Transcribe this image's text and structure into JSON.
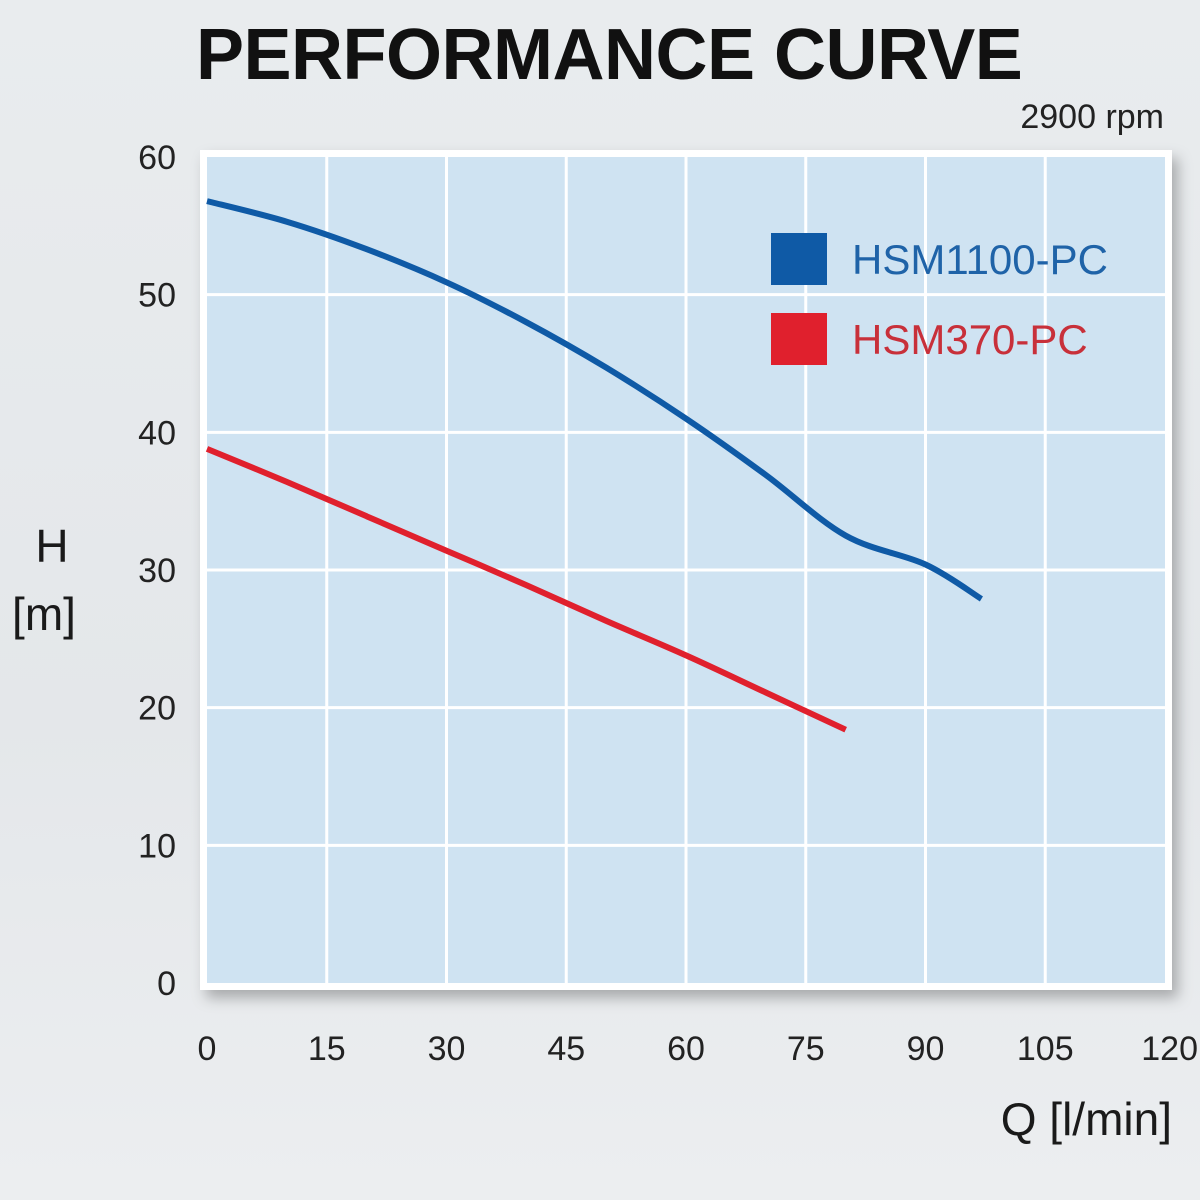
{
  "chart_data": {
    "type": "line",
    "title": "PERFORMANCE CURVE",
    "subtitle": "2900 rpm",
    "xlabel": "Q [l/min]",
    "ylabel_line1": "H",
    "ylabel_line2": "[m]",
    "xlim": [
      0,
      120
    ],
    "ylim": [
      0,
      60
    ],
    "x_ticks": [
      "0",
      "15",
      "30",
      "45",
      "60",
      "75",
      "90",
      "105",
      "120"
    ],
    "y_ticks": [
      "0",
      "10",
      "20",
      "30",
      "40",
      "50",
      "60"
    ],
    "grid": true,
    "legend_position": "top-right",
    "plot_background": "#cfe3f2",
    "series": [
      {
        "name": "HSM1100-PC",
        "color": "#0f5aa6",
        "text_color": "#1f63a8",
        "x": [
          0,
          10,
          20,
          30,
          40,
          50,
          60,
          70,
          80,
          90,
          97
        ],
        "y": [
          56.8,
          55.3,
          53.3,
          50.9,
          48.0,
          44.7,
          41.0,
          36.9,
          32.5,
          30.4,
          27.9
        ]
      },
      {
        "name": "HSM370-PC",
        "color": "#e0202d",
        "text_color": "#c8303a",
        "x": [
          0,
          10,
          20,
          30,
          40,
          50,
          60,
          70,
          80
        ],
        "y": [
          38.8,
          36.4,
          33.9,
          31.4,
          28.9,
          26.3,
          23.8,
          21.1,
          18.4
        ]
      }
    ]
  }
}
